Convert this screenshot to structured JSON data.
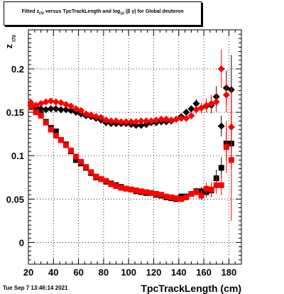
{
  "title": {
    "pre": "Fitted  z",
    "sub1": "I70",
    "mid": " versus TpcTrackLength and log",
    "sub2": "10",
    "post": " (β γ) for Global deuteron"
  },
  "timestamp": "Tue Sep  7 13:46:14 2021",
  "chart_data": {
    "type": "scatter",
    "title": "Fitted z_I70 versus TpcTrackLength and log10(βγ) for Global deuteron",
    "xlabel": "TpcTrackLength (cm)",
    "ylabel": "z",
    "ylabel_sub": "I70",
    "xlim": [
      20,
      190
    ],
    "ylim": [
      -0.025,
      0.245
    ],
    "grid": true,
    "xticks": [
      20,
      40,
      60,
      80,
      100,
      120,
      140,
      160,
      180
    ],
    "yticks": [
      0,
      0.05,
      0.1,
      0.15,
      0.2
    ],
    "ytick_labels": [
      "0",
      "0.05",
      "0.1",
      "0.15",
      "0.2"
    ],
    "series": [
      {
        "marker": "diamond",
        "color": "#000000",
        "x": [
          22,
          26,
          30,
          34,
          38,
          42,
          46,
          50,
          54,
          58,
          62,
          66,
          70,
          74,
          78,
          82,
          86,
          90,
          94,
          98,
          102,
          106,
          110,
          114,
          118,
          122,
          126,
          130,
          134,
          138,
          142,
          146,
          150,
          154,
          158,
          162,
          166,
          170,
          174,
          178,
          182
        ],
        "y": [
          0.158,
          0.156,
          0.154,
          0.153,
          0.154,
          0.154,
          0.153,
          0.153,
          0.152,
          0.15,
          0.148,
          0.146,
          0.145,
          0.143,
          0.141,
          0.138,
          0.137,
          0.137,
          0.137,
          0.137,
          0.136,
          0.135,
          0.135,
          0.136,
          0.138,
          0.138,
          0.139,
          0.139,
          0.14,
          0.142,
          0.145,
          0.15,
          0.154,
          0.16,
          0.155,
          0.157,
          0.158,
          0.168,
          0.134,
          0.178,
          0.176
        ],
        "err": [
          0.002,
          0.002,
          0.002,
          0.002,
          0.002,
          0.002,
          0.002,
          0.002,
          0.002,
          0.002,
          0.002,
          0.002,
          0.002,
          0.002,
          0.002,
          0.002,
          0.002,
          0.002,
          0.002,
          0.002,
          0.002,
          0.002,
          0.002,
          0.002,
          0.002,
          0.002,
          0.002,
          0.002,
          0.002,
          0.002,
          0.003,
          0.004,
          0.004,
          0.005,
          0.006,
          0.007,
          0.009,
          0.012,
          0.012,
          0.02,
          0.04
        ]
      },
      {
        "marker": "diamond",
        "color": "#ff0000",
        "x": [
          22,
          26,
          30,
          34,
          38,
          42,
          46,
          50,
          54,
          58,
          62,
          66,
          70,
          74,
          78,
          82,
          86,
          90,
          94,
          98,
          102,
          106,
          110,
          114,
          118,
          122,
          126,
          130,
          134,
          138,
          142,
          146,
          150,
          154,
          158,
          162,
          166,
          170,
          174,
          178,
          182
        ],
        "y": [
          0.161,
          0.158,
          0.16,
          0.162,
          0.163,
          0.162,
          0.161,
          0.159,
          0.157,
          0.154,
          0.152,
          0.148,
          0.147,
          0.145,
          0.144,
          0.141,
          0.14,
          0.14,
          0.139,
          0.139,
          0.139,
          0.139,
          0.14,
          0.14,
          0.14,
          0.141,
          0.142,
          0.142,
          0.141,
          0.142,
          0.143,
          0.143,
          0.146,
          0.153,
          0.155,
          0.158,
          0.16,
          0.162,
          0.2,
          0.17,
          0.133
        ],
        "err": [
          0.002,
          0.002,
          0.002,
          0.002,
          0.002,
          0.002,
          0.002,
          0.002,
          0.002,
          0.002,
          0.002,
          0.002,
          0.002,
          0.002,
          0.002,
          0.002,
          0.002,
          0.002,
          0.002,
          0.002,
          0.002,
          0.002,
          0.002,
          0.002,
          0.002,
          0.002,
          0.002,
          0.002,
          0.002,
          0.002,
          0.003,
          0.004,
          0.004,
          0.005,
          0.006,
          0.008,
          0.01,
          0.012,
          0.022,
          0.02,
          0.045
        ]
      },
      {
        "marker": "square",
        "color": "#000000",
        "x": [
          22,
          26,
          30,
          34,
          38,
          42,
          46,
          50,
          54,
          58,
          62,
          66,
          70,
          74,
          78,
          82,
          86,
          90,
          94,
          98,
          102,
          106,
          110,
          114,
          118,
          122,
          126,
          130,
          134,
          138,
          142,
          146,
          150,
          154,
          158,
          162,
          166,
          170,
          174,
          178,
          182
        ],
        "y": [
          0.156,
          0.152,
          0.148,
          0.139,
          0.132,
          0.128,
          0.118,
          0.113,
          0.105,
          0.095,
          0.091,
          0.086,
          0.08,
          0.075,
          0.073,
          0.07,
          0.068,
          0.066,
          0.064,
          0.062,
          0.061,
          0.059,
          0.058,
          0.057,
          0.057,
          0.055,
          0.054,
          0.052,
          0.051,
          0.05,
          0.053,
          0.053,
          0.056,
          0.059,
          0.059,
          0.058,
          0.06,
          0.074,
          0.086,
          0.114,
          0.114
        ],
        "err": [
          0.002,
          0.002,
          0.002,
          0.002,
          0.002,
          0.002,
          0.002,
          0.002,
          0.002,
          0.002,
          0.002,
          0.002,
          0.002,
          0.002,
          0.002,
          0.002,
          0.002,
          0.002,
          0.002,
          0.002,
          0.002,
          0.002,
          0.002,
          0.002,
          0.002,
          0.002,
          0.002,
          0.002,
          0.002,
          0.002,
          0.003,
          0.003,
          0.003,
          0.004,
          0.005,
          0.006,
          0.008,
          0.01,
          0.012,
          0.018,
          0.03
        ]
      },
      {
        "marker": "square",
        "color": "#ff0000",
        "x": [
          22,
          26,
          30,
          34,
          38,
          42,
          46,
          50,
          54,
          58,
          62,
          66,
          70,
          74,
          78,
          82,
          86,
          90,
          94,
          98,
          102,
          106,
          110,
          114,
          118,
          122,
          126,
          130,
          134,
          138,
          142,
          146,
          150,
          154,
          158,
          162,
          166,
          170,
          174,
          178,
          182
        ],
        "y": [
          0.156,
          0.15,
          0.146,
          0.138,
          0.13,
          0.123,
          0.118,
          0.112,
          0.106,
          0.099,
          0.093,
          0.087,
          0.081,
          0.076,
          0.073,
          0.071,
          0.067,
          0.065,
          0.063,
          0.062,
          0.061,
          0.06,
          0.059,
          0.058,
          0.057,
          0.056,
          0.055,
          0.053,
          0.052,
          0.051,
          0.05,
          0.052,
          0.056,
          0.058,
          0.054,
          0.062,
          0.061,
          0.066,
          0.066,
          0.11,
          0.095
        ],
        "err": [
          0.002,
          0.002,
          0.002,
          0.002,
          0.002,
          0.002,
          0.002,
          0.002,
          0.002,
          0.002,
          0.002,
          0.002,
          0.002,
          0.002,
          0.002,
          0.002,
          0.002,
          0.002,
          0.002,
          0.002,
          0.002,
          0.002,
          0.002,
          0.002,
          0.002,
          0.002,
          0.002,
          0.002,
          0.002,
          0.002,
          0.003,
          0.003,
          0.003,
          0.004,
          0.005,
          0.007,
          0.008,
          0.01,
          0.012,
          0.03,
          0.07
        ]
      }
    ]
  }
}
